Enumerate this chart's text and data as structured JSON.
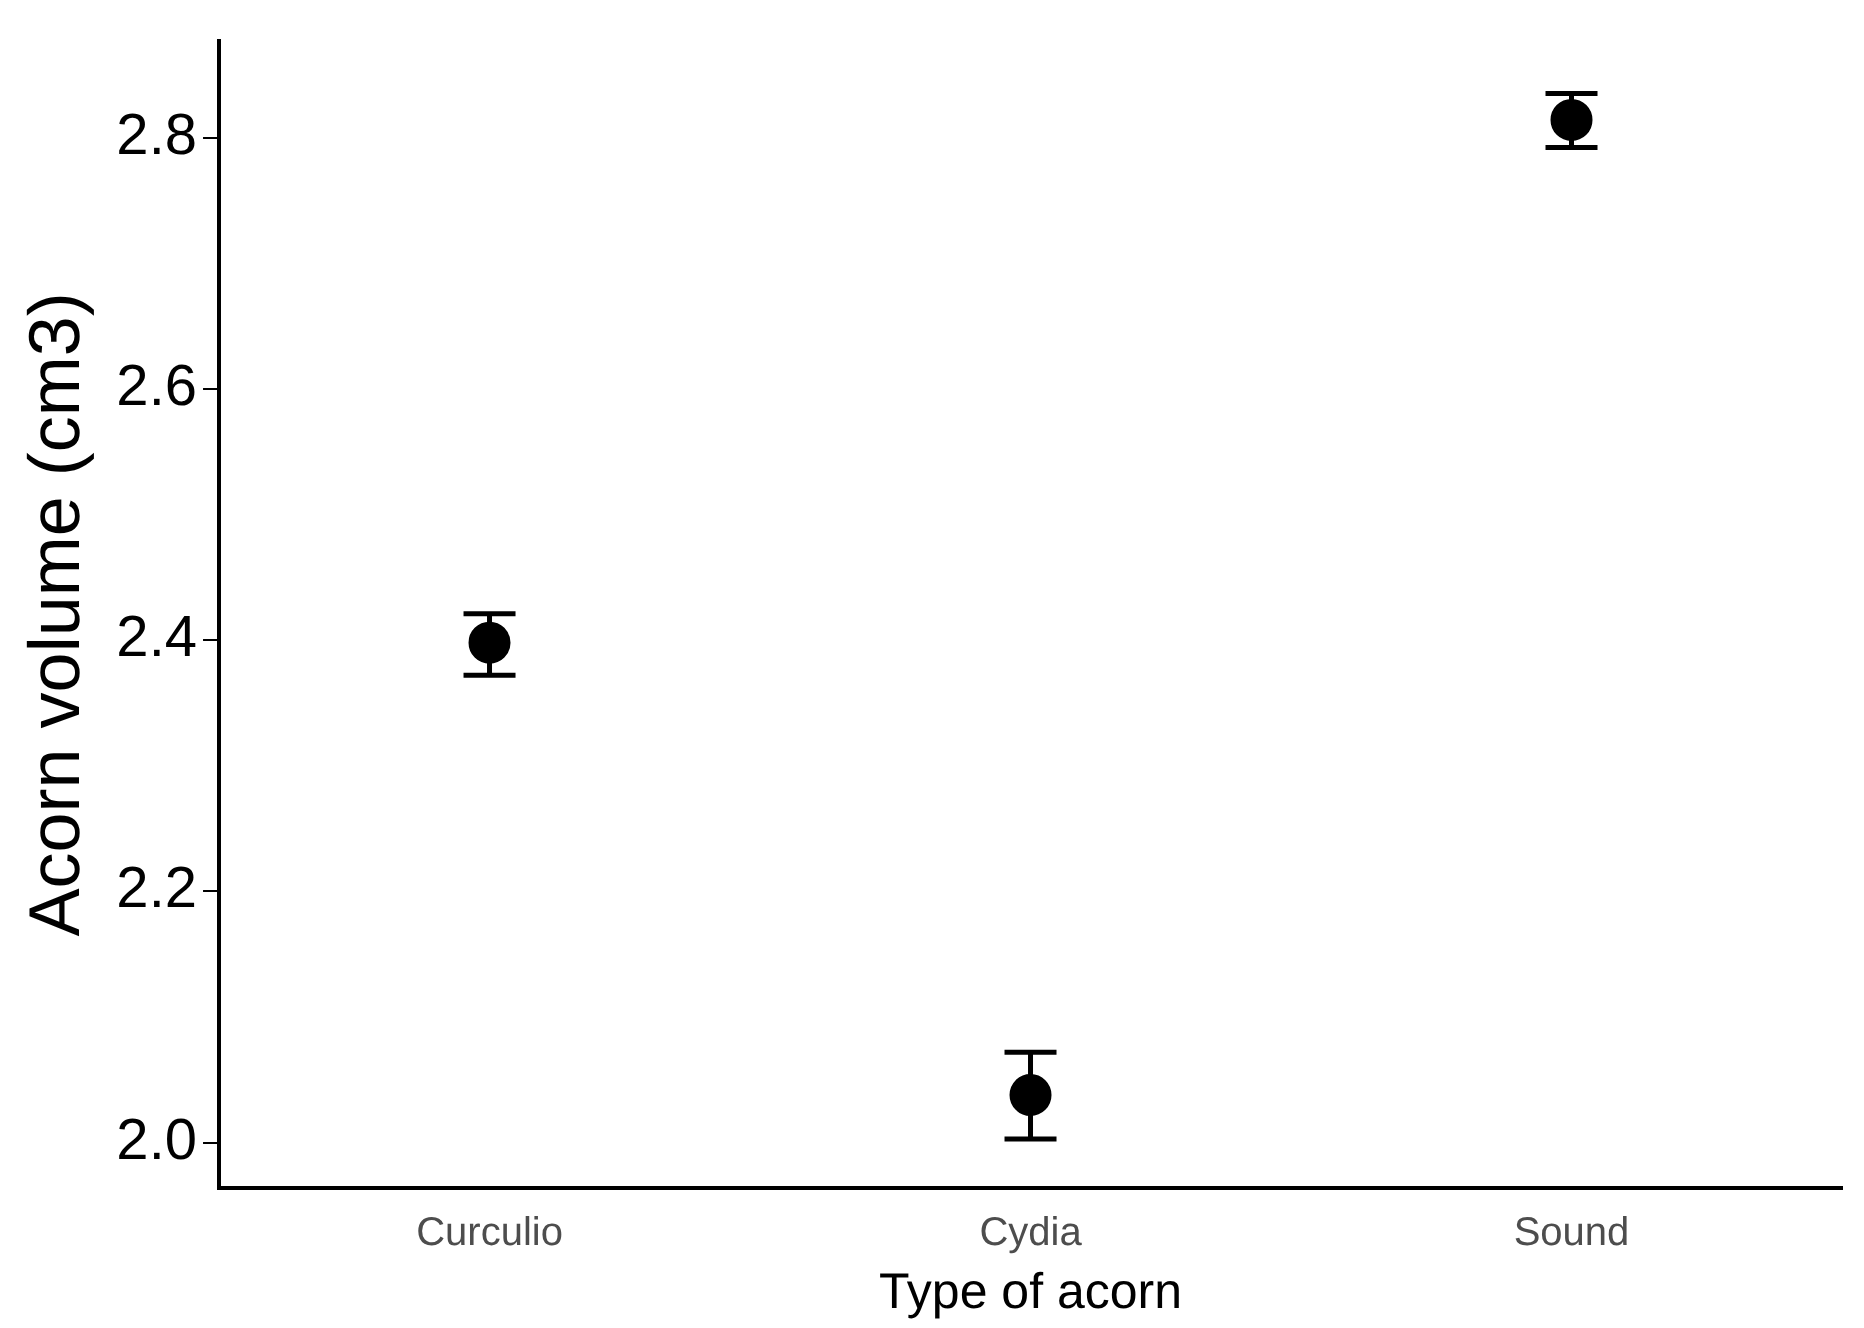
{
  "chart_data": {
    "type": "scatter",
    "xlabel": "Type of acorn",
    "ylabel": "Acorn volume (cm3)",
    "categories": [
      "Curculio",
      "Cydia",
      "Sound"
    ],
    "series": [
      {
        "color": "#000000",
        "values": [
          2.398,
          2.038,
          2.814
        ],
        "errors": [
          [
            2.372,
            2.421
          ],
          [
            2.003,
            2.072
          ],
          [
            2.792,
            2.835
          ]
        ]
      }
    ],
    "ylim": [
      1.964,
      2.877
    ],
    "yticks": [
      {
        "value": 2,
        "label": "2.0"
      },
      {
        "value": 2.2,
        "label": "2.2"
      },
      {
        "value": 2.4,
        "label": "2.4"
      },
      {
        "value": 2.6,
        "label": "2.6"
      },
      {
        "value": 2.8,
        "label": "2.8"
      }
    ],
    "grid": false,
    "legend": false,
    "marker": "circle"
  }
}
